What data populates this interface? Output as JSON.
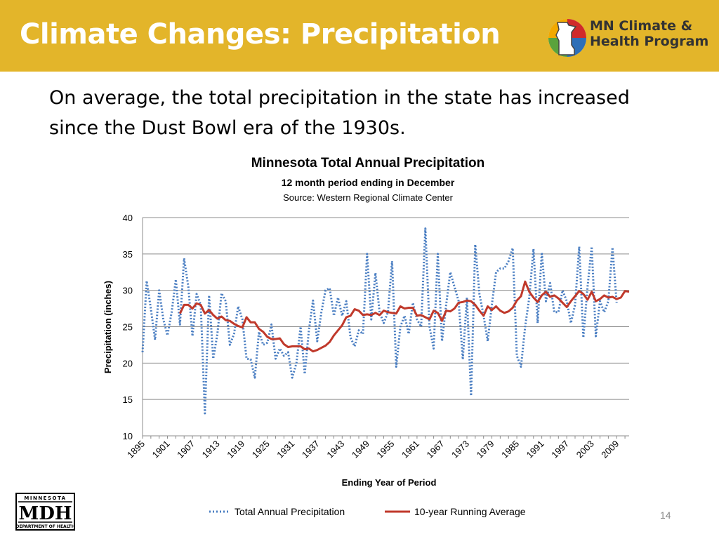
{
  "slide": {
    "title": "Climate Changes: Precipitation",
    "body": "On average, the total precipitation in the state has increased since the Dust Bowl era of the 1930s.",
    "page_number": "14",
    "header_color": "#E3B52A"
  },
  "logo": {
    "line1": "MN Climate &",
    "line2": "Health Program",
    "colors": [
      "#F2A900",
      "#5AA33C",
      "#D02A2A",
      "#2E6FB7"
    ]
  },
  "mdh_logo": {
    "top": "MINNESOTA",
    "main": "MDH",
    "bottom": "DEPARTMENT OF HEALTH"
  },
  "chart_data": {
    "type": "line",
    "title": "Minnesota Total Annual Precipitation",
    "subtitle": "12 month period ending in December",
    "source": "Source: Western Regional Climate Center",
    "xlabel": "Ending Year of Period",
    "ylabel": "Precipitation (inches)",
    "ylim": [
      10,
      40
    ],
    "yticks": [
      10,
      15,
      20,
      25,
      30,
      35,
      40
    ],
    "xlim": [
      1895,
      2012
    ],
    "xticks": [
      "1895",
      "1901",
      "1907",
      "1913",
      "1919",
      "1925",
      "1931",
      "1937",
      "1943",
      "1949",
      "1955",
      "1961",
      "1967",
      "1973",
      "1979",
      "1985",
      "1991",
      "1997",
      "2003",
      "2009"
    ],
    "grid": true,
    "legend": "bottom",
    "series": [
      {
        "name": "Total Annual Precipitation",
        "style": "dotted",
        "color": "#4A7EC2",
        "x_start": 1895,
        "values": [
          21.5,
          31.3,
          27.5,
          23.2,
          30.0,
          26.0,
          23.8,
          27.0,
          31.5,
          25.3,
          34.4,
          30.5,
          23.7,
          29.5,
          28.0,
          13.1,
          29.3,
          20.6,
          24.0,
          29.6,
          28.5,
          22.5,
          24.0,
          27.8,
          26.0,
          20.6,
          20.5,
          18.0,
          24.3,
          22.5,
          22.8,
          25.3,
          20.6,
          22.0,
          21.0,
          21.5,
          18.0,
          20.0,
          25.0,
          18.5,
          24.5,
          28.6,
          23.0,
          27.0,
          30.0,
          30.3,
          26.5,
          29.0,
          26.5,
          28.5,
          23.5,
          22.3,
          24.5,
          24.0,
          35.0,
          26.0,
          32.4,
          27.0,
          25.5,
          27.0,
          34.0,
          19.5,
          25.0,
          26.5,
          24.0,
          28.3,
          26.0,
          25.0,
          38.5,
          25.0,
          22.0,
          35.0,
          23.0,
          28.0,
          32.5,
          30.5,
          28.5,
          20.5,
          29.0,
          15.5,
          36.3,
          29.5,
          26.5,
          23.0,
          28.0,
          32.5,
          33.0,
          33.0,
          34.0,
          35.8,
          21.0,
          19.5,
          25.0,
          29.0,
          35.7,
          25.5,
          35.2,
          28.5,
          31.0,
          27.0,
          27.0,
          30.0,
          28.5,
          25.5,
          28.0,
          36.0,
          23.5,
          30.5,
          36.0,
          23.7,
          28.5,
          27.0,
          28.5,
          35.9,
          28.3
        ]
      },
      {
        "name": "10-year Running Average",
        "style": "solid",
        "color": "#C0392B",
        "x_start": 1904,
        "values": [
          26.8,
          28.0,
          28.0,
          27.5,
          28.2,
          28.0,
          26.8,
          27.3,
          26.6,
          26.1,
          26.4,
          25.9,
          25.8,
          25.4,
          25.1,
          24.9,
          26.3,
          25.6,
          25.6,
          24.7,
          24.3,
          23.6,
          23.3,
          23.3,
          23.4,
          22.6,
          22.2,
          22.3,
          22.3,
          22.3,
          21.9,
          22.0,
          21.6,
          21.8,
          22.1,
          22.4,
          22.9,
          23.8,
          24.5,
          25.2,
          26.3,
          26.5,
          27.4,
          27.2,
          26.6,
          26.7,
          26.6,
          26.9,
          26.6,
          27.2,
          27.0,
          26.9,
          26.8,
          27.8,
          27.5,
          27.6,
          27.6,
          26.5,
          26.6,
          26.3,
          26.0,
          27.2,
          26.9,
          25.8,
          27.2,
          27.1,
          27.5,
          28.3,
          28.4,
          28.6,
          28.5,
          28.0,
          27.2,
          26.5,
          27.8,
          27.3,
          27.8,
          27.2,
          26.9,
          27.1,
          27.6,
          28.6,
          29.2,
          31.2,
          29.8,
          29.0,
          28.4,
          29.3,
          29.8,
          29.1,
          29.3,
          28.9,
          28.3,
          27.7,
          28.5,
          29.2,
          29.9,
          29.5,
          28.7,
          29.8,
          28.5,
          28.8,
          29.3,
          29.0,
          29.1,
          28.8,
          29.0,
          29.9,
          29.8
        ]
      }
    ]
  }
}
